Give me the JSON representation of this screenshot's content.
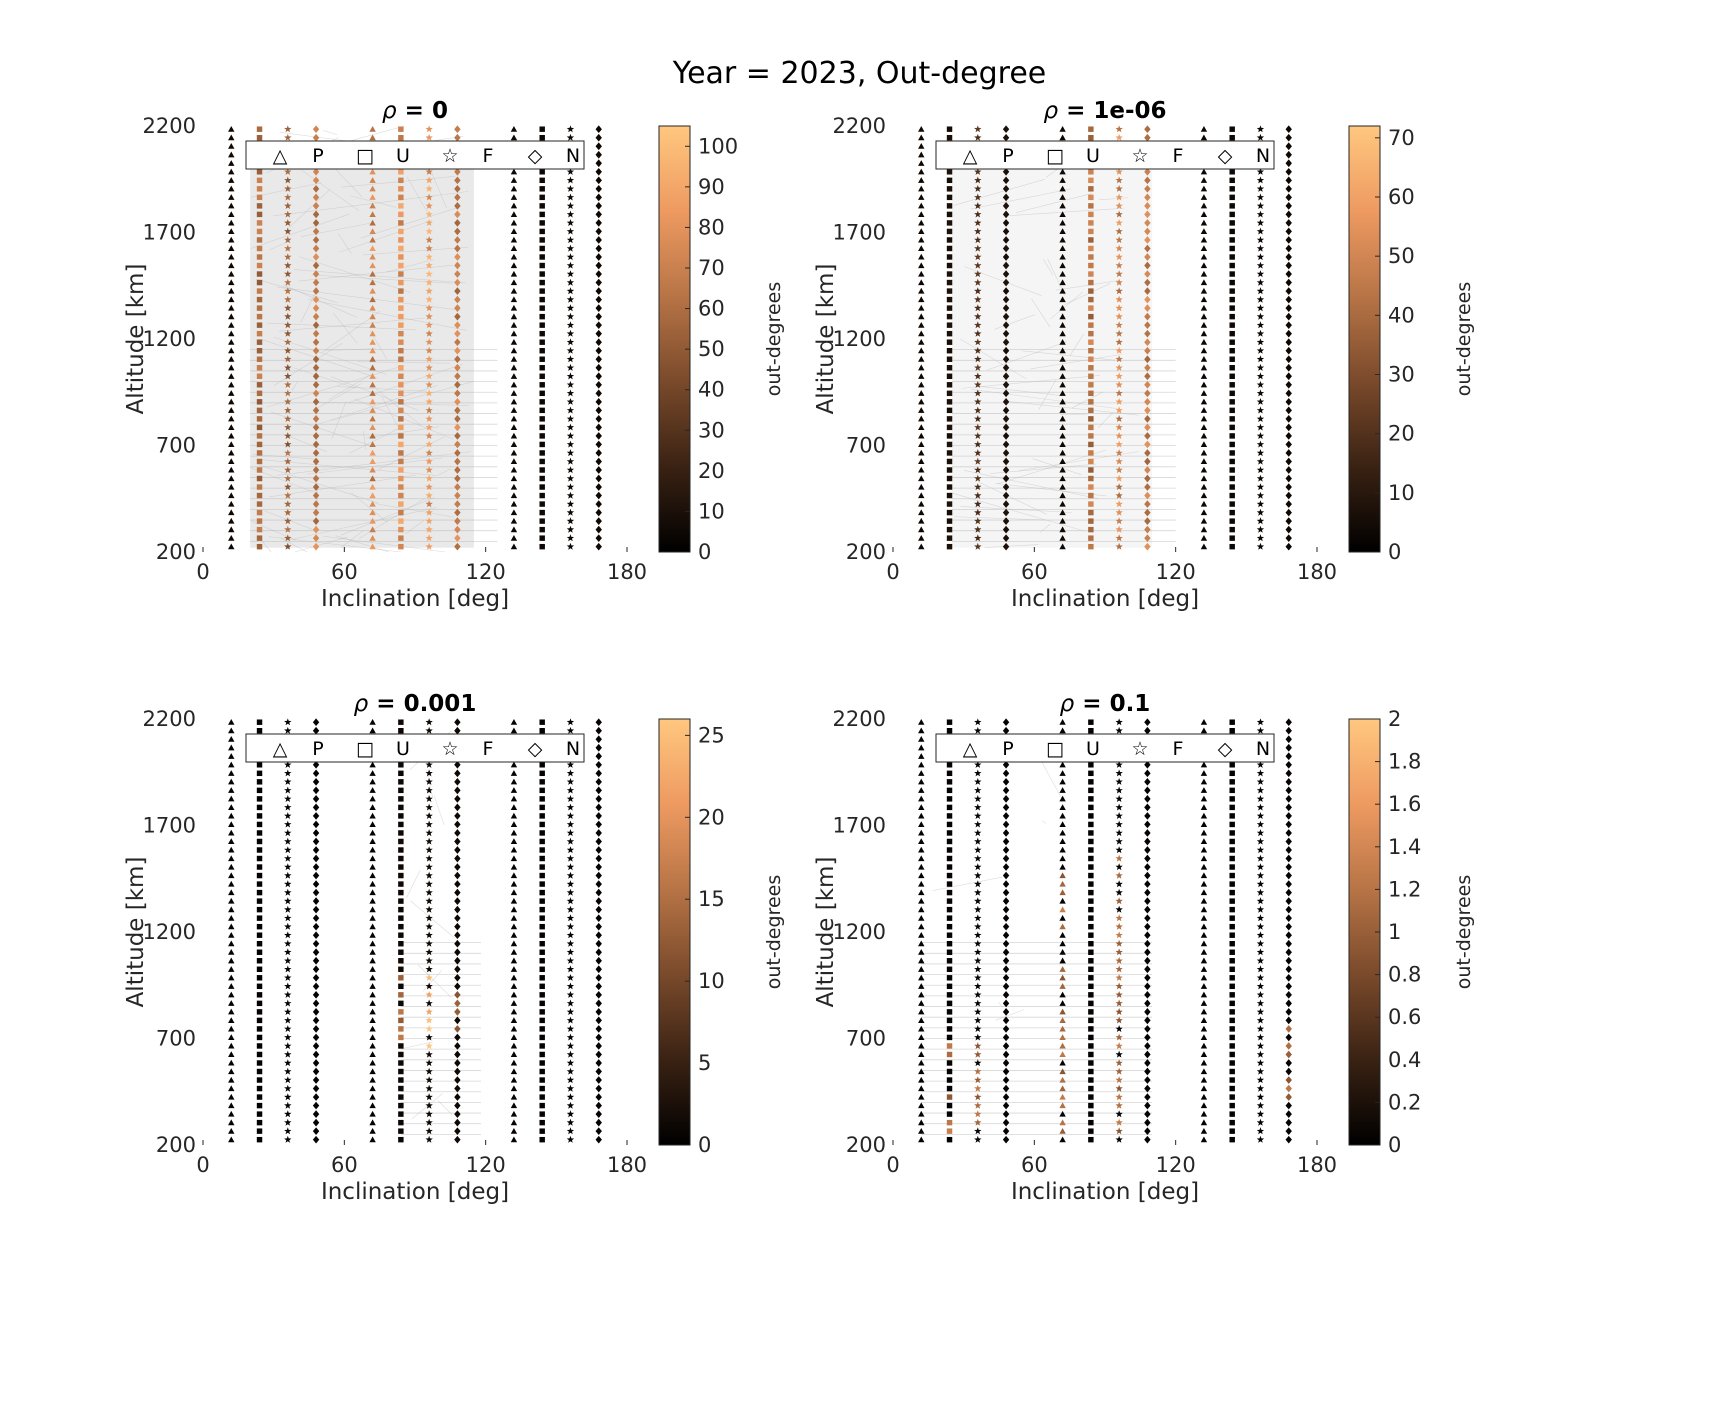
{
  "figure": {
    "suptitle": "Year = 2023, Out-degree"
  },
  "legend_items": [
    {
      "symbol": "△",
      "label": "P",
      "name": "triangle-marker-icon"
    },
    {
      "symbol": "□",
      "label": "U",
      "name": "square-marker-icon"
    },
    {
      "symbol": "☆",
      "label": "F",
      "name": "star-marker-icon"
    },
    {
      "symbol": "◇",
      "label": "N",
      "name": "diamond-marker-icon"
    }
  ],
  "colormap": [
    "#000000",
    "#3a2213",
    "#7a4a2b",
    "#b77446",
    "#ee9a61",
    "#ffc77f"
  ],
  "chart_data": [
    {
      "type": "scatter",
      "title_symbol": "ρ",
      "title_value": " = 0",
      "xlabel": "Inclination [deg]",
      "ylabel": "Altitude [km]",
      "xlim": [
        0,
        180
      ],
      "ylim": [
        200,
        2200
      ],
      "xticks": [
        0,
        60,
        120,
        180
      ],
      "yticks": [
        200,
        700,
        1200,
        1700,
        2200
      ],
      "colorbar": {
        "label": "out-degrees",
        "max": 105,
        "ticks": [
          0,
          10,
          20,
          30,
          40,
          50,
          60,
          70,
          80,
          90,
          100
        ]
      },
      "series_columns": [
        {
          "x": 12,
          "marker": "triangle",
          "level": 0.05,
          "low": 200,
          "high": 2200
        },
        {
          "x": 24,
          "marker": "square",
          "level": 0.62,
          "low": 200,
          "high": 2200
        },
        {
          "x": 36,
          "marker": "star",
          "level": 0.55,
          "low": 200,
          "high": 2200
        },
        {
          "x": 48,
          "marker": "diamond",
          "level": 0.7,
          "low": 200,
          "high": 2200
        },
        {
          "x": 72,
          "marker": "triangle",
          "level": 0.75,
          "low": 200,
          "high": 2200
        },
        {
          "x": 84,
          "marker": "square",
          "level": 0.8,
          "low": 200,
          "high": 2200
        },
        {
          "x": 96,
          "marker": "star",
          "level": 0.85,
          "low": 200,
          "high": 2200
        },
        {
          "x": 108,
          "marker": "diamond",
          "level": 0.7,
          "low": 200,
          "high": 2200
        },
        {
          "x": 132,
          "marker": "triangle",
          "level": 0.05,
          "low": 200,
          "high": 2200
        },
        {
          "x": 144,
          "marker": "square",
          "level": 0.05,
          "low": 200,
          "high": 2200
        },
        {
          "x": 156,
          "marker": "star",
          "level": 0.05,
          "low": 200,
          "high": 2200
        },
        {
          "x": 168,
          "marker": "diamond",
          "level": 0.05,
          "low": 200,
          "high": 2200
        }
      ],
      "edge_band": {
        "x0": 20,
        "x1": 115,
        "density": 0.55
      }
    },
    {
      "type": "scatter",
      "title_symbol": "ρ",
      "title_value": " = 1e-06",
      "xlabel": "Inclination [deg]",
      "ylabel": "Altitude [km]",
      "xlim": [
        0,
        180
      ],
      "ylim": [
        200,
        2200
      ],
      "xticks": [
        0,
        60,
        120,
        180
      ],
      "yticks": [
        200,
        700,
        1200,
        1700,
        2200
      ],
      "colorbar": {
        "label": "out-degrees",
        "max": 72,
        "ticks": [
          0,
          10,
          20,
          30,
          40,
          50,
          60,
          70
        ]
      },
      "series_columns": [
        {
          "x": 12,
          "marker": "triangle",
          "level": 0.05,
          "low": 200,
          "high": 2200
        },
        {
          "x": 24,
          "marker": "square",
          "level": 0.1,
          "low": 200,
          "high": 2200
        },
        {
          "x": 36,
          "marker": "star",
          "level": 0.3,
          "low": 200,
          "high": 2200
        },
        {
          "x": 48,
          "marker": "diamond",
          "level": 0.1,
          "low": 200,
          "high": 2200
        },
        {
          "x": 72,
          "marker": "triangle",
          "level": 0.05,
          "low": 200,
          "high": 2200
        },
        {
          "x": 84,
          "marker": "square",
          "level": 0.65,
          "low": 200,
          "high": 2200
        },
        {
          "x": 96,
          "marker": "star",
          "level": 0.75,
          "low": 200,
          "high": 2200
        },
        {
          "x": 108,
          "marker": "diamond",
          "level": 0.7,
          "low": 200,
          "high": 2200
        },
        {
          "x": 132,
          "marker": "triangle",
          "level": 0.05,
          "low": 200,
          "high": 2200
        },
        {
          "x": 144,
          "marker": "square",
          "level": 0.05,
          "low": 200,
          "high": 2200
        },
        {
          "x": 156,
          "marker": "star",
          "level": 0.05,
          "low": 200,
          "high": 2200
        },
        {
          "x": 168,
          "marker": "diamond",
          "level": 0.05,
          "low": 200,
          "high": 2200
        }
      ],
      "edge_band": {
        "x0": 25,
        "x1": 110,
        "density": 0.25
      }
    },
    {
      "type": "scatter",
      "title_symbol": "ρ",
      "title_value": " = 0.001",
      "xlabel": "Inclination [deg]",
      "ylabel": "Altitude [km]",
      "xlim": [
        0,
        180
      ],
      "ylim": [
        200,
        2200
      ],
      "xticks": [
        0,
        60,
        120,
        180
      ],
      "yticks": [
        200,
        700,
        1200,
        1700,
        2200
      ],
      "colorbar": {
        "label": "out-degrees",
        "max": 26,
        "ticks": [
          0,
          5,
          10,
          15,
          20,
          25
        ]
      },
      "series_columns": [
        {
          "x": 12,
          "marker": "triangle",
          "level": 0.02,
          "low": 200,
          "high": 2200
        },
        {
          "x": 24,
          "marker": "square",
          "level": 0.02,
          "low": 200,
          "high": 2200
        },
        {
          "x": 36,
          "marker": "star",
          "level": 0.02,
          "low": 200,
          "high": 2200
        },
        {
          "x": 48,
          "marker": "diamond",
          "level": 0.02,
          "low": 200,
          "high": 2200
        },
        {
          "x": 72,
          "marker": "triangle",
          "level": 0.02,
          "low": 200,
          "high": 2200
        },
        {
          "x": 84,
          "marker": "square",
          "level": 0.05,
          "low": 200,
          "high": 2200
        },
        {
          "x": 96,
          "marker": "star",
          "level": 0.05,
          "low": 200,
          "high": 2200
        },
        {
          "x": 108,
          "marker": "diamond",
          "level": 0.05,
          "low": 200,
          "high": 2200
        },
        {
          "x": 132,
          "marker": "triangle",
          "level": 0.02,
          "low": 200,
          "high": 2200
        },
        {
          "x": 144,
          "marker": "square",
          "level": 0.02,
          "low": 200,
          "high": 2200
        },
        {
          "x": 156,
          "marker": "star",
          "level": 0.02,
          "low": 200,
          "high": 2200
        },
        {
          "x": 168,
          "marker": "diamond",
          "level": 0.02,
          "low": 200,
          "high": 2200
        }
      ],
      "highlight": [
        {
          "x": 84,
          "low": 700,
          "high": 1000,
          "level": 0.6
        },
        {
          "x": 96,
          "low": 650,
          "high": 1000,
          "level": 0.9
        },
        {
          "x": 108,
          "low": 700,
          "high": 950,
          "level": 0.55
        }
      ],
      "edge_band": {
        "x0": 84,
        "x1": 108,
        "density": 0.06
      }
    },
    {
      "type": "scatter",
      "title_symbol": "ρ",
      "title_value": " = 0.1",
      "xlabel": "Inclination [deg]",
      "ylabel": "Altitude [km]",
      "xlim": [
        0,
        180
      ],
      "ylim": [
        200,
        2200
      ],
      "xticks": [
        0,
        60,
        120,
        180
      ],
      "yticks": [
        200,
        700,
        1200,
        1700,
        2200
      ],
      "colorbar": {
        "label": "out-degrees",
        "max": 2,
        "ticks": [
          0,
          0.2,
          0.4,
          0.6,
          0.8,
          1,
          1.2,
          1.4,
          1.6,
          1.8,
          2
        ]
      },
      "series_columns": [
        {
          "x": 12,
          "marker": "triangle",
          "level": 0.02,
          "low": 200,
          "high": 2200
        },
        {
          "x": 24,
          "marker": "square",
          "level": 0.02,
          "low": 200,
          "high": 2200
        },
        {
          "x": 36,
          "marker": "star",
          "level": 0.02,
          "low": 200,
          "high": 2200
        },
        {
          "x": 48,
          "marker": "diamond",
          "level": 0.02,
          "low": 200,
          "high": 2200
        },
        {
          "x": 72,
          "marker": "triangle",
          "level": 0.02,
          "low": 200,
          "high": 2200
        },
        {
          "x": 84,
          "marker": "square",
          "level": 0.02,
          "low": 200,
          "high": 2200
        },
        {
          "x": 96,
          "marker": "star",
          "level": 0.02,
          "low": 200,
          "high": 2200
        },
        {
          "x": 108,
          "marker": "diamond",
          "level": 0.02,
          "low": 200,
          "high": 2200
        },
        {
          "x": 132,
          "marker": "triangle",
          "level": 0.02,
          "low": 200,
          "high": 2200
        },
        {
          "x": 144,
          "marker": "square",
          "level": 0.02,
          "low": 200,
          "high": 2200
        },
        {
          "x": 156,
          "marker": "star",
          "level": 0.02,
          "low": 200,
          "high": 2200
        },
        {
          "x": 168,
          "marker": "diamond",
          "level": 0.02,
          "low": 200,
          "high": 2200
        }
      ],
      "highlight": [
        {
          "x": 24,
          "low": 250,
          "high": 800,
          "level": 0.55
        },
        {
          "x": 36,
          "low": 250,
          "high": 800,
          "level": 0.55
        },
        {
          "x": 72,
          "low": 250,
          "high": 1500,
          "level": 0.55
        },
        {
          "x": 96,
          "low": 250,
          "high": 1600,
          "level": 0.55
        },
        {
          "x": 168,
          "low": 400,
          "high": 750,
          "level": 0.55
        }
      ],
      "edge_band": {
        "x0": 12,
        "x1": 100,
        "density": 0.03
      }
    }
  ]
}
